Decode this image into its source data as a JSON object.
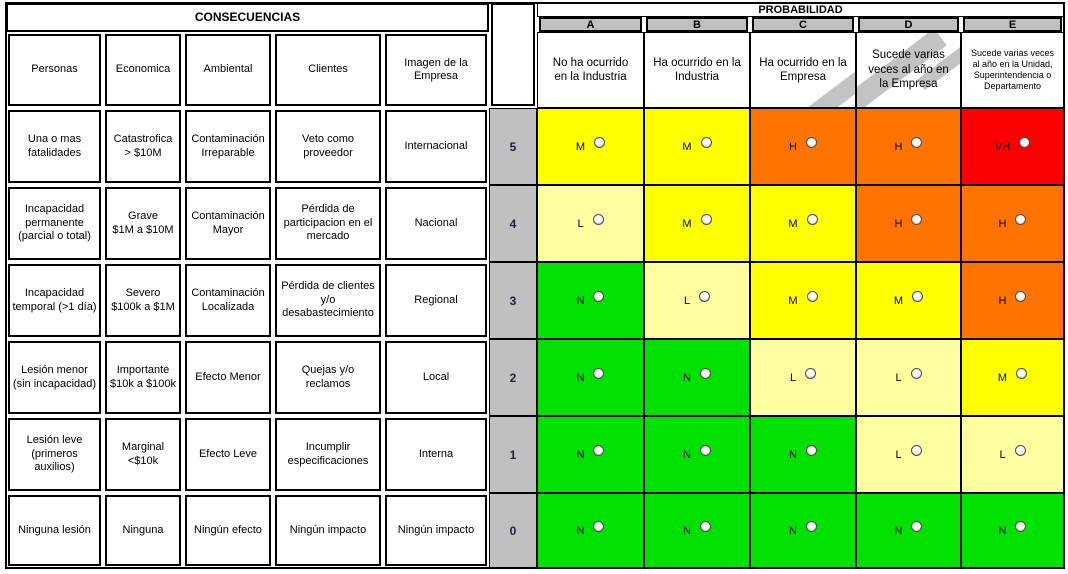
{
  "header": {
    "consequences_title": "CONSECUENCIAS",
    "probability_title": "PROBABILIDAD",
    "consequence_columns": [
      "Personas",
      "Economica",
      "Ambiental",
      "Clientes",
      "Imagen de la\nEmpresa"
    ],
    "probability_columns": [
      {
        "letter": "A",
        "description": "No ha ocurrido\nen la Industria"
      },
      {
        "letter": "B",
        "description": "Ha ocurrido en la\nIndustria"
      },
      {
        "letter": "C",
        "description": "Ha ocurrido en la\nEmpresa"
      },
      {
        "letter": "D",
        "description": "Sucede varias\nveces al año en\nla Empresa"
      },
      {
        "letter": "E",
        "description": "Sucede varias veces\nal año en la Unidad,\nSuperintendencia o\nDepartamento"
      }
    ]
  },
  "palette": {
    "none_green": "#00e100",
    "low_cream": "#ffffa0",
    "medium_yellow": "#ffff00",
    "high_orange": "#ff7300",
    "very_high_red": "#fa0000",
    "header_gray": "#c0c0c0"
  },
  "rows": [
    {
      "level": "5",
      "personas": "Una o mas\nfatalidades",
      "economica": "Catastrofica\n> $10M",
      "ambiental": "Contaminación\nIrreparable",
      "clientes": "Veto como\nproveedor",
      "imagen": "Internacional",
      "cells": [
        {
          "rating": "M",
          "color": "yellow"
        },
        {
          "rating": "M",
          "color": "yellow"
        },
        {
          "rating": "H",
          "color": "orange"
        },
        {
          "rating": "H",
          "color": "orange"
        },
        {
          "rating": "VH",
          "color": "red"
        }
      ]
    },
    {
      "level": "4",
      "personas": "Incapacidad\npermanente\n(parcial o total)",
      "economica": "Grave\n$1M a $10M",
      "ambiental": "Contaminación\nMayor",
      "clientes": "Pérdida de\nparticipacion en el\nmercado",
      "imagen": "Nacional",
      "cells": [
        {
          "rating": "L",
          "color": "cream"
        },
        {
          "rating": "M",
          "color": "yellow"
        },
        {
          "rating": "M",
          "color": "yellow"
        },
        {
          "rating": "H",
          "color": "orange"
        },
        {
          "rating": "H",
          "color": "orange"
        }
      ]
    },
    {
      "level": "3",
      "personas": "Incapacidad\ntemporal (>1 día)",
      "economica": "Severo\n$100k a $1M",
      "ambiental": "Contaminación\nLocalizada",
      "clientes": "Pérdida de clientes\ny/o\ndesabastecimiento",
      "imagen": "Regional",
      "cells": [
        {
          "rating": "N",
          "color": "green"
        },
        {
          "rating": "L",
          "color": "cream"
        },
        {
          "rating": "M",
          "color": "yellow"
        },
        {
          "rating": "M",
          "color": "yellow"
        },
        {
          "rating": "H",
          "color": "orange"
        }
      ]
    },
    {
      "level": "2",
      "personas": "Lesión menor\n(sin incapacidad)",
      "economica": "Importante\n$10k a $100k",
      "ambiental": "Efecto Menor",
      "clientes": "Quejas y/o\nreclamos",
      "imagen": "Local",
      "cells": [
        {
          "rating": "N",
          "color": "green"
        },
        {
          "rating": "N",
          "color": "green"
        },
        {
          "rating": "L",
          "color": "cream"
        },
        {
          "rating": "L",
          "color": "cream"
        },
        {
          "rating": "M",
          "color": "yellow"
        }
      ]
    },
    {
      "level": "1",
      "personas": "Lesión leve\n(primeros\nauxilios)",
      "economica": "Marginal\n<$10k",
      "ambiental": "Efecto Leve",
      "clientes": "Incumplir\nespecificaciones",
      "imagen": "Interna",
      "cells": [
        {
          "rating": "N",
          "color": "green"
        },
        {
          "rating": "N",
          "color": "green"
        },
        {
          "rating": "N",
          "color": "green"
        },
        {
          "rating": "L",
          "color": "cream"
        },
        {
          "rating": "L",
          "color": "cream"
        }
      ]
    },
    {
      "level": "0",
      "personas": "Ninguna lesión",
      "economica": "Ninguna",
      "ambiental": "Ningún efecto",
      "clientes": "Ningún impacto",
      "imagen": "Ningún impacto",
      "cells": [
        {
          "rating": "N",
          "color": "green"
        },
        {
          "rating": "N",
          "color": "green"
        },
        {
          "rating": "N",
          "color": "green"
        },
        {
          "rating": "N",
          "color": "green"
        },
        {
          "rating": "N",
          "color": "green"
        }
      ]
    }
  ]
}
